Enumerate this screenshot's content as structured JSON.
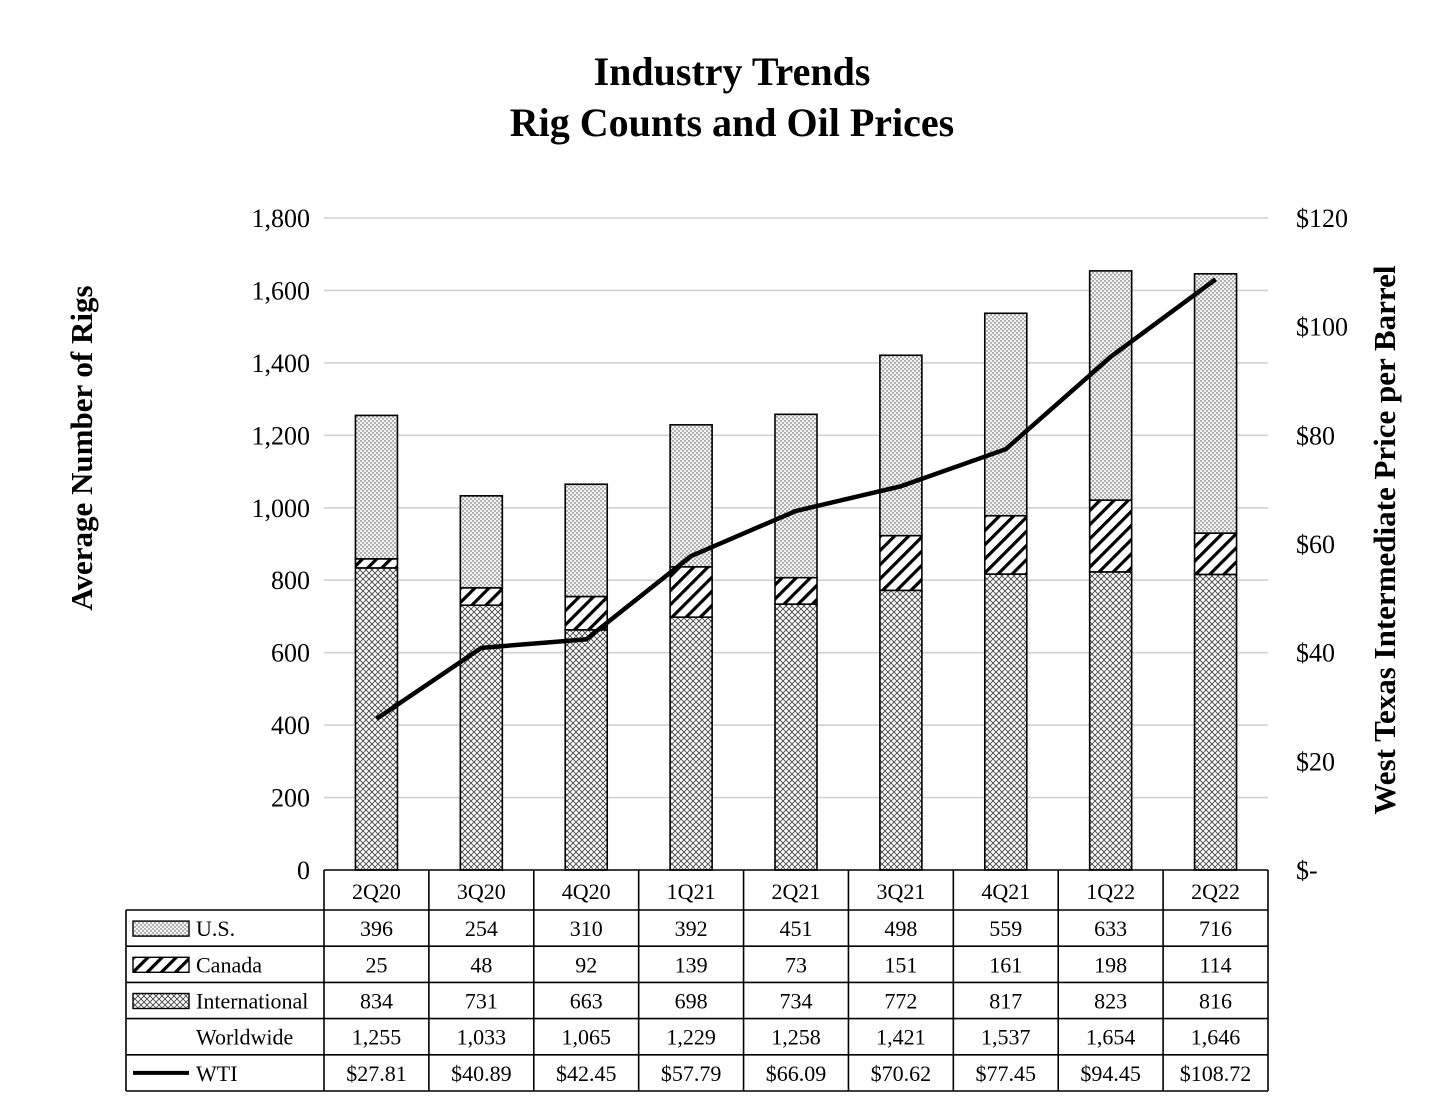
{
  "chart_data": {
    "type": "bar",
    "stacked": true,
    "title": [
      "Industry Trends",
      "Rig Counts and Oil Prices"
    ],
    "ylabel": "Average Number of Rigs",
    "y2label": "West Texas Intermediate Price per Barrel",
    "ylim": [
      0,
      1800
    ],
    "yticks": [
      0,
      200,
      400,
      600,
      800,
      1000,
      1200,
      1400,
      1600,
      1800
    ],
    "ytick_labels": [
      "0",
      "200",
      "400",
      "600",
      "800",
      "1,000",
      "1,200",
      "1,400",
      "1,600",
      "1,800"
    ],
    "y2lim": [
      0,
      120
    ],
    "y2ticks": [
      0,
      20,
      40,
      60,
      80,
      100,
      120
    ],
    "y2tick_labels": [
      "$-",
      "$20",
      "$40",
      "$60",
      "$80",
      "$100",
      "$120"
    ],
    "grid": true,
    "categories": [
      "2Q20",
      "3Q20",
      "4Q20",
      "1Q21",
      "2Q21",
      "3Q21",
      "4Q21",
      "1Q22",
      "2Q22"
    ],
    "series": [
      {
        "name": "International",
        "kind": "bar",
        "pattern": "crosshatch",
        "values": [
          834,
          731,
          663,
          698,
          734,
          772,
          817,
          823,
          816
        ],
        "labels": [
          "834",
          "731",
          "663",
          "698",
          "734",
          "772",
          "817",
          "823",
          "816"
        ]
      },
      {
        "name": "Canada",
        "kind": "bar",
        "pattern": "diagonal",
        "values": [
          25,
          48,
          92,
          139,
          73,
          151,
          161,
          198,
          114
        ],
        "labels": [
          "25",
          "48",
          "92",
          "139",
          "73",
          "151",
          "161",
          "198",
          "114"
        ]
      },
      {
        "name": "U.S.",
        "kind": "bar",
        "pattern": "dots",
        "values": [
          396,
          254,
          310,
          392,
          451,
          498,
          559,
          633,
          716
        ],
        "labels": [
          "396",
          "254",
          "310",
          "392",
          "451",
          "498",
          "559",
          "633",
          "716"
        ]
      },
      {
        "name": "Worldwide",
        "kind": "total",
        "values": [
          1255,
          1033,
          1065,
          1229,
          1258,
          1421,
          1537,
          1654,
          1646
        ],
        "labels": [
          "1,255",
          "1,033",
          "1,065",
          "1,229",
          "1,258",
          "1,421",
          "1,537",
          "1,654",
          "1,646"
        ]
      },
      {
        "name": "WTI",
        "kind": "line",
        "axis": "y2",
        "values": [
          27.81,
          40.89,
          42.45,
          57.79,
          66.09,
          70.62,
          77.45,
          94.45,
          108.72
        ],
        "labels": [
          "$27.81",
          "$40.89",
          "$42.45",
          "$57.79",
          "$66.09",
          "$70.62",
          "$77.45",
          "$94.45",
          "$108.72"
        ]
      }
    ],
    "table_row_order": [
      "U.S.",
      "Canada",
      "International",
      "Worldwide",
      "WTI"
    ],
    "colors": {
      "line": "#000000",
      "grid": "#d0d0d0",
      "border": "#000000",
      "fill": "#ffffff"
    }
  }
}
